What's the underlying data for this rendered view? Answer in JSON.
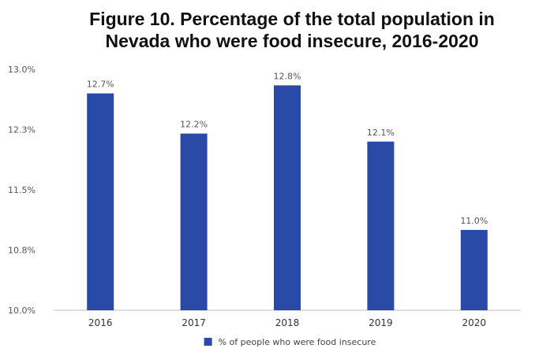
{
  "chart_data": {
    "type": "bar",
    "title_lines": [
      "Figure 10. Percentage of the total population in",
      "Nevada who were food insecure, 2016-2020"
    ],
    "categories": [
      "2016",
      "2017",
      "2018",
      "2019",
      "2020"
    ],
    "series": [
      {
        "name": "% of people who were food insecure",
        "values": [
          12.7,
          12.2,
          12.8,
          12.1,
          11.0
        ],
        "labels": [
          "12.7%",
          "12.2%",
          "12.8%",
          "12.1%",
          "11.0%"
        ],
        "color": "#2a4aa8"
      }
    ],
    "ylim": [
      10.0,
      13.0
    ],
    "yticks": [
      10.0,
      10.75,
      11.5,
      12.25,
      13.0
    ],
    "ytick_labels": [
      "10.0%",
      "10.8%",
      "11.5%",
      "12.3%",
      "13.0%"
    ],
    "xlabel": "",
    "ylabel": "",
    "grid": false,
    "legend_position": "bottom"
  }
}
